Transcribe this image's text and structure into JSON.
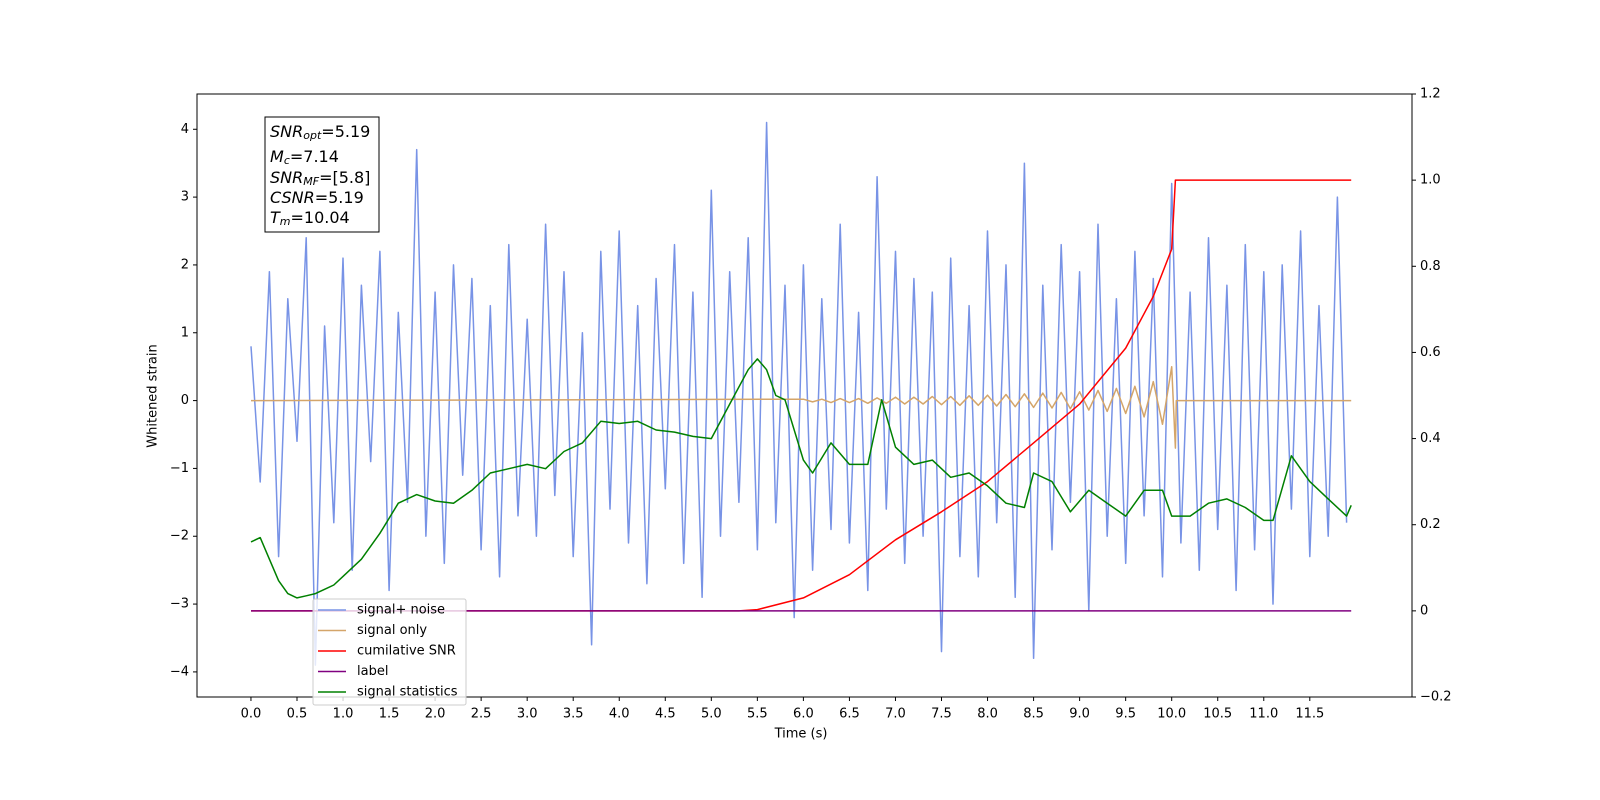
{
  "chart_data": {
    "type": "line",
    "xlabel": "Time (s)",
    "ylabel": "Whitened strain",
    "xlim": [
      -0.586,
      12.61
    ],
    "ylim": [
      -4.37,
      4.52
    ],
    "y2lim": [
      -0.2,
      1.2
    ],
    "xticks": [
      {
        "value": 0,
        "label": "0.0"
      },
      0.5,
      {
        "value": 1,
        "label": "1.0"
      },
      1.5,
      {
        "value": 2,
        "label": "2.0"
      },
      2.5,
      {
        "value": 3,
        "label": "3.0"
      },
      3.5,
      {
        "value": 4,
        "label": "4.0"
      },
      4.5,
      {
        "value": 5,
        "label": "5.0"
      },
      5.5,
      {
        "value": 6,
        "label": "6.0"
      },
      6.5,
      {
        "value": 7,
        "label": "7.0"
      },
      7.5,
      {
        "value": 8,
        "label": "8.0"
      },
      8.5,
      {
        "value": 9,
        "label": "9.0"
      },
      9.5,
      {
        "value": 10,
        "label": "10.0"
      },
      10.5,
      {
        "value": 11,
        "label": "11.0"
      },
      11.5
    ],
    "yticks": [
      {
        "value": -4,
        "label": "−4"
      },
      {
        "value": -3,
        "label": "−3"
      },
      {
        "value": -2,
        "label": "−2"
      },
      {
        "value": -1,
        "label": "−1"
      },
      0,
      1,
      2,
      3,
      4
    ],
    "y2ticks": [
      {
        "value": -0.2,
        "label": "−0.2"
      },
      0.0,
      0.2,
      0.4,
      0.6,
      0.8,
      {
        "value": 1.0,
        "label": "1.0"
      },
      1.2
    ],
    "legend": "lower left",
    "annotation": [
      {
        "symbol": "SNR",
        "sub": "opt",
        "text": "=5.19"
      },
      {
        "symbol": "M",
        "sub": "c",
        "text": "=7.14"
      },
      {
        "symbol": "SNR",
        "sub": "MF",
        "text": "=[5.8]"
      },
      {
        "symbol": "CSNR",
        "text": "=5.19"
      },
      {
        "symbol": "T",
        "sub": "m",
        "text": "=10.04"
      }
    ],
    "series": [
      {
        "name": "signal+ noise",
        "color": "#7893e6",
        "x": [
          0.0,
          0.1,
          0.2,
          0.3,
          0.4,
          0.5,
          0.6,
          0.7,
          0.8,
          0.9,
          1.0,
          1.1,
          1.2,
          1.3,
          1.4,
          1.5,
          1.6,
          1.7,
          1.8,
          1.9,
          2.0,
          2.1,
          2.2,
          2.3,
          2.4,
          2.5,
          2.6,
          2.7,
          2.8,
          2.9,
          3.0,
          3.1,
          3.2,
          3.3,
          3.4,
          3.5,
          3.6,
          3.7,
          3.8,
          3.9,
          4.0,
          4.1,
          4.2,
          4.3,
          4.4,
          4.5,
          4.6,
          4.7,
          4.8,
          4.9,
          5.0,
          5.1,
          5.2,
          5.3,
          5.4,
          5.5,
          5.6,
          5.7,
          5.8,
          5.9,
          6.0,
          6.1,
          6.2,
          6.3,
          6.4,
          6.5,
          6.6,
          6.7,
          6.8,
          6.9,
          7.0,
          7.1,
          7.2,
          7.3,
          7.4,
          7.5,
          7.6,
          7.7,
          7.8,
          7.9,
          8.0,
          8.1,
          8.2,
          8.3,
          8.4,
          8.5,
          8.6,
          8.7,
          8.8,
          8.9,
          9.0,
          9.1,
          9.2,
          9.3,
          9.4,
          9.5,
          9.6,
          9.7,
          9.8,
          9.9,
          10.0,
          10.1,
          10.2,
          10.3,
          10.4,
          10.5,
          10.6,
          10.7,
          10.8,
          10.9,
          11.0,
          11.1,
          11.2,
          11.3,
          11.4,
          11.5,
          11.6,
          11.7,
          11.8,
          11.9
        ],
        "values": [
          0.8,
          -1.2,
          1.9,
          -2.3,
          1.5,
          -0.6,
          2.4,
          -3.9,
          1.1,
          -1.8,
          2.1,
          -2.5,
          1.7,
          -0.9,
          2.2,
          -2.8,
          1.3,
          -1.5,
          3.7,
          -2.0,
          1.6,
          -2.4,
          2.0,
          -1.1,
          1.8,
          -2.2,
          1.4,
          -2.6,
          2.3,
          -1.7,
          1.2,
          -2.0,
          2.6,
          -1.4,
          1.9,
          -2.3,
          1.0,
          -3.6,
          2.2,
          -1.6,
          2.5,
          -2.1,
          1.4,
          -2.7,
          1.8,
          -1.3,
          2.3,
          -2.4,
          1.6,
          -2.9,
          3.1,
          -2.0,
          1.9,
          -1.5,
          2.4,
          -2.2,
          4.1,
          -1.8,
          1.7,
          -3.2,
          2.0,
          -2.5,
          1.5,
          -1.9,
          2.6,
          -2.1,
          1.3,
          -2.8,
          3.3,
          -1.6,
          2.2,
          -2.4,
          1.8,
          -2.0,
          1.6,
          -3.7,
          2.1,
          -2.3,
          1.4,
          -2.6,
          2.5,
          -1.8,
          2.0,
          -2.9,
          3.5,
          -3.8,
          1.7,
          -2.2,
          2.3,
          -1.5,
          1.9,
          -3.1,
          2.6,
          -2.0,
          1.5,
          -2.4,
          2.2,
          -1.7,
          1.8,
          -2.6,
          3.2,
          -2.1,
          1.6,
          -2.5,
          2.4,
          -1.9,
          1.7,
          -2.8,
          2.3,
          -2.2,
          1.9,
          -3.0,
          2.0,
          -1.6,
          2.5,
          -2.3,
          1.4,
          -2.0,
          3.0,
          -1.8
        ]
      },
      {
        "name": "signal only",
        "color": "#d4a56a",
        "x": [
          0.0,
          6.0,
          6.1,
          6.2,
          6.3,
          6.4,
          6.5,
          6.6,
          6.7,
          6.8,
          6.9,
          7.0,
          7.1,
          7.2,
          7.3,
          7.4,
          7.5,
          7.6,
          7.7,
          7.8,
          7.9,
          8.0,
          8.1,
          8.2,
          8.3,
          8.4,
          8.5,
          8.6,
          8.7,
          8.8,
          8.9,
          9.0,
          9.1,
          9.2,
          9.3,
          9.4,
          9.5,
          9.6,
          9.7,
          9.8,
          9.9,
          10.0,
          10.04,
          10.05,
          11.95
        ],
        "values": [
          0,
          0.02,
          -0.02,
          0.02,
          -0.03,
          0.03,
          -0.03,
          0.03,
          -0.04,
          0.04,
          -0.04,
          0.05,
          -0.05,
          0.05,
          -0.05,
          0.06,
          -0.06,
          0.06,
          -0.07,
          0.07,
          -0.07,
          0.08,
          -0.08,
          0.09,
          -0.09,
          0.1,
          -0.1,
          0.11,
          -0.11,
          0.12,
          -0.12,
          0.13,
          -0.14,
          0.15,
          -0.16,
          0.18,
          -0.19,
          0.21,
          -0.24,
          0.28,
          -0.35,
          0.5,
          -0.7,
          0,
          0
        ]
      },
      {
        "name": "cumilative SNR",
        "color": "#ff0000",
        "axis": "y2",
        "x": [
          0.0,
          5.3,
          5.5,
          6.0,
          6.5,
          7.0,
          7.5,
          8.0,
          8.5,
          9.0,
          9.5,
          9.8,
          10.0,
          10.04,
          11.95
        ],
        "values": [
          0,
          0,
          0.003,
          0.03,
          0.084,
          0.165,
          0.23,
          0.3,
          0.39,
          0.48,
          0.61,
          0.73,
          0.84,
          1.0,
          1.0
        ]
      },
      {
        "name": "label",
        "color": "#800080",
        "axis": "y2",
        "x": [
          0.0,
          11.95
        ],
        "values": [
          0,
          0
        ]
      },
      {
        "name": "signal statistics",
        "color": "#008000",
        "axis": "y2",
        "x": [
          0.0,
          0.1,
          0.2,
          0.3,
          0.4,
          0.5,
          0.6,
          0.7,
          0.8,
          0.9,
          1.0,
          1.2,
          1.4,
          1.6,
          1.8,
          2.0,
          2.2,
          2.4,
          2.6,
          2.8,
          3.0,
          3.2,
          3.4,
          3.6,
          3.8,
          4.0,
          4.2,
          4.4,
          4.6,
          4.8,
          5.0,
          5.2,
          5.4,
          5.5,
          5.6,
          5.7,
          5.8,
          6.0,
          6.1,
          6.3,
          6.5,
          6.7,
          6.85,
          7.0,
          7.2,
          7.4,
          7.6,
          7.8,
          8.0,
          8.2,
          8.4,
          8.5,
          8.7,
          8.9,
          9.1,
          9.3,
          9.5,
          9.7,
          9.9,
          10.0,
          10.2,
          10.4,
          10.6,
          10.8,
          11.0,
          11.1,
          11.3,
          11.5,
          11.7,
          11.9,
          11.95
        ],
        "values": [
          0.16,
          0.17,
          0.12,
          0.07,
          0.04,
          0.03,
          0.035,
          0.04,
          0.05,
          0.06,
          0.08,
          0.12,
          0.18,
          0.25,
          0.27,
          0.255,
          0.25,
          0.28,
          0.32,
          0.33,
          0.34,
          0.33,
          0.37,
          0.39,
          0.44,
          0.435,
          0.44,
          0.42,
          0.415,
          0.405,
          0.4,
          0.48,
          0.56,
          0.585,
          0.56,
          0.5,
          0.49,
          0.35,
          0.32,
          0.39,
          0.34,
          0.34,
          0.49,
          0.38,
          0.34,
          0.35,
          0.31,
          0.32,
          0.29,
          0.25,
          0.24,
          0.32,
          0.3,
          0.23,
          0.28,
          0.25,
          0.22,
          0.28,
          0.28,
          0.22,
          0.22,
          0.25,
          0.26,
          0.24,
          0.21,
          0.21,
          0.36,
          0.3,
          0.26,
          0.22,
          0.245
        ]
      }
    ]
  }
}
